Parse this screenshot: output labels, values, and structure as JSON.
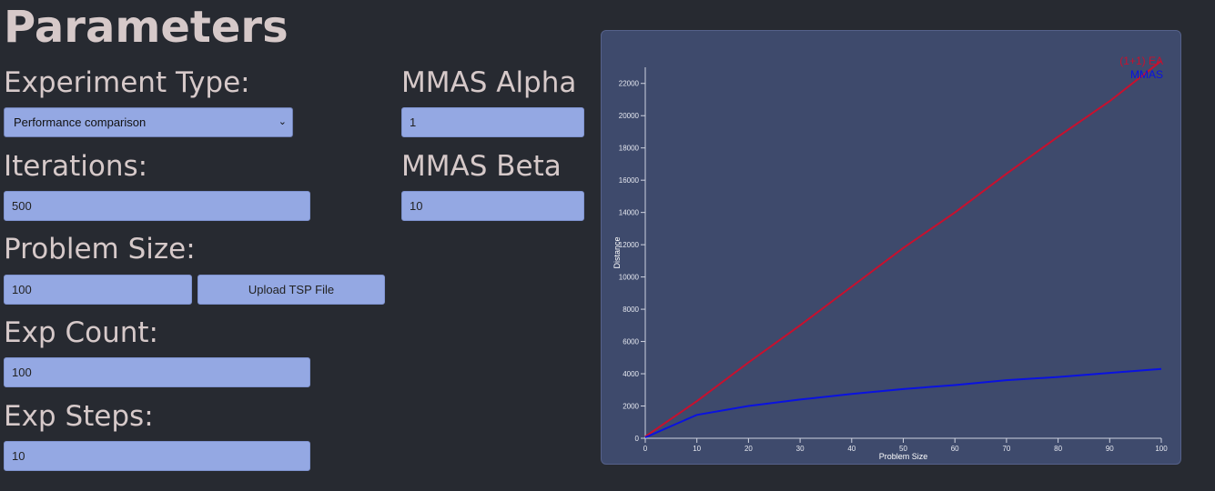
{
  "page": {
    "title": "Parameters"
  },
  "form": {
    "experiment_type": {
      "label": "Experiment Type:",
      "value": "Performance comparison"
    },
    "iterations": {
      "label": "Iterations:",
      "value": "500"
    },
    "problem_size": {
      "label": "Problem Size:",
      "value": "100",
      "upload_label": "Upload TSP File"
    },
    "exp_count": {
      "label": "Exp Count:",
      "value": "100"
    },
    "exp_steps": {
      "label": "Exp Steps:",
      "value": "10"
    },
    "mmas_alpha": {
      "label": "MMAS Alpha",
      "value": "1"
    },
    "mmas_beta": {
      "label": "MMAS Beta",
      "value": "10"
    }
  },
  "chart_data": {
    "type": "line",
    "title": "",
    "xlabel": "Problem Size",
    "ylabel": "Distance",
    "x": [
      0,
      10,
      20,
      30,
      40,
      50,
      60,
      70,
      80,
      90,
      100
    ],
    "xlim": [
      0,
      100
    ],
    "ylim": [
      0,
      23000
    ],
    "xticks": [
      0,
      10,
      20,
      30,
      40,
      50,
      60,
      70,
      80,
      90,
      100
    ],
    "yticks": [
      0,
      2000,
      4000,
      6000,
      8000,
      10000,
      12000,
      14000,
      16000,
      18000,
      20000,
      22000
    ],
    "legend_position": "top-right",
    "series": [
      {
        "name": "(1+1) EA",
        "color": "#c8102e",
        "values": [
          100,
          2300,
          4700,
          7000,
          9400,
          11800,
          14000,
          16400,
          18700,
          20900,
          23400
        ]
      },
      {
        "name": "MMAS",
        "color": "#0a12e0",
        "values": [
          50,
          1450,
          2000,
          2400,
          2750,
          3050,
          3300,
          3600,
          3800,
          4050,
          4300
        ]
      }
    ]
  }
}
